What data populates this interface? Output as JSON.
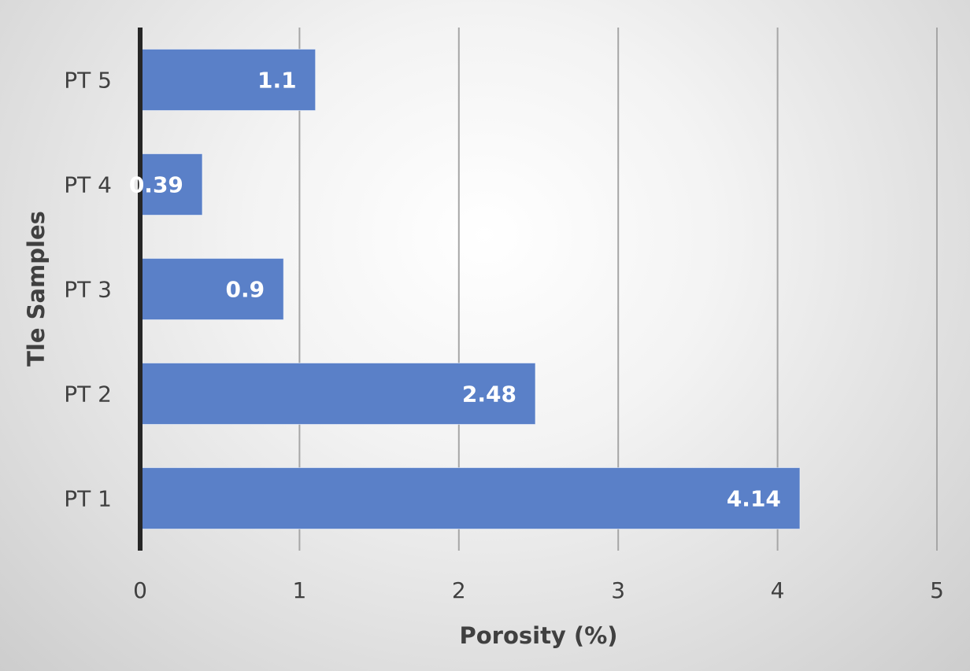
{
  "chart_data": {
    "type": "bar",
    "orientation": "horizontal",
    "categories": [
      "PT 1",
      "PT 2",
      "PT 3",
      "PT 4",
      "PT 5"
    ],
    "values": [
      4.14,
      2.48,
      0.9,
      0.39,
      1.1
    ],
    "data_labels": [
      "4.14",
      "2.48",
      "0.9",
      "0.39",
      "1.1"
    ],
    "xlabel": "Porosity (%)",
    "ylabel": "Tle Samples",
    "xlim": [
      0,
      5
    ],
    "xticks": [
      0,
      1,
      2,
      3,
      4,
      5
    ],
    "grid": true,
    "bar_color": "#5A80C8",
    "axis_color": "#262626",
    "grid_color": "#A6A6A6"
  }
}
